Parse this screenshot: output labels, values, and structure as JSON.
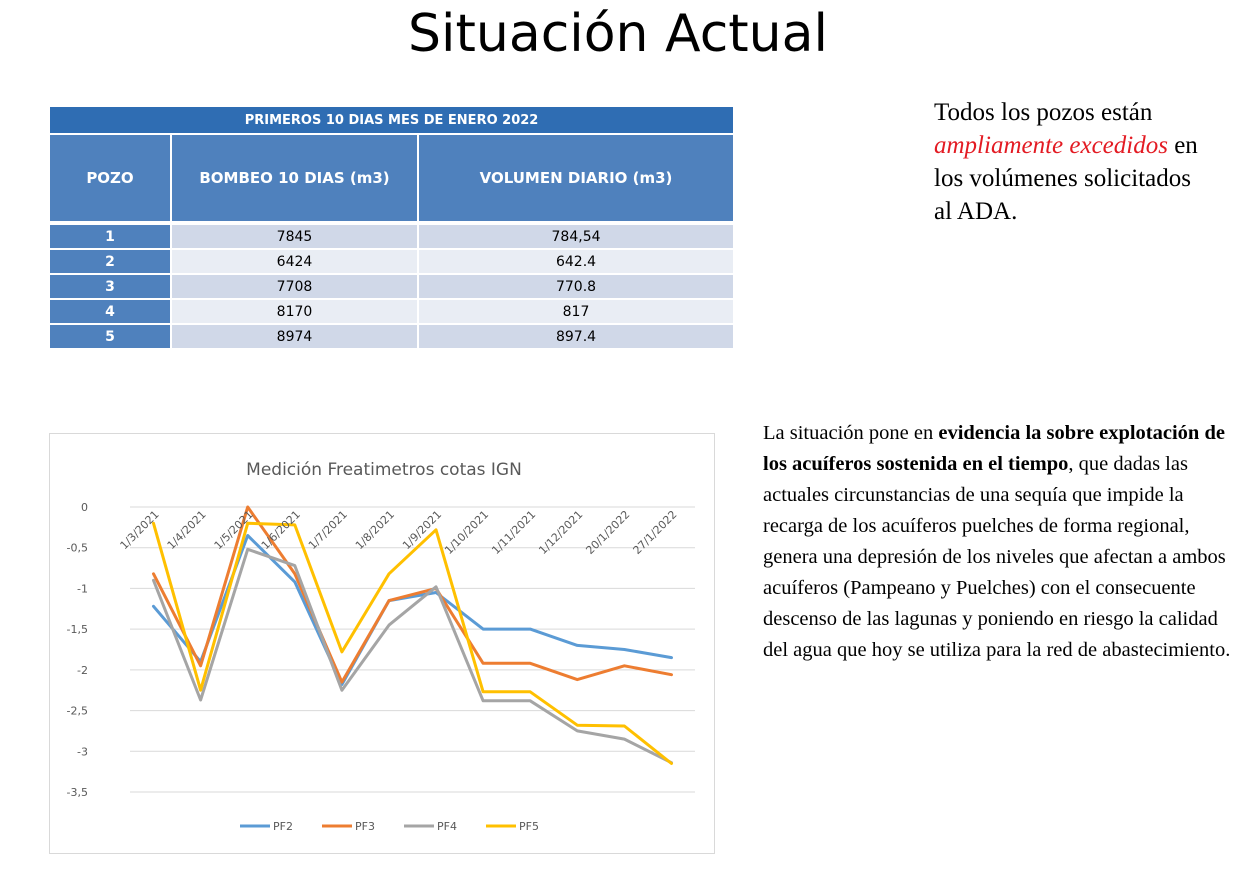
{
  "title": "Situación Actual",
  "table": {
    "caption": "PRIMEROS 10 DIAS MES DE ENERO 2022",
    "headers": [
      "POZO",
      "BOMBEO 10 DIAS (m3)",
      "VOLUMEN DIARIO (m3)"
    ],
    "rows": [
      {
        "pozo": "1",
        "bombeo": "7845",
        "volumen": "784,54"
      },
      {
        "pozo": "2",
        "bombeo": "6424",
        "volumen": "642.4"
      },
      {
        "pozo": "3",
        "bombeo": "7708",
        "volumen": "770.8"
      },
      {
        "pozo": "4",
        "bombeo": "8170",
        "volumen": "817"
      },
      {
        "pozo": "5",
        "bombeo": "8974",
        "volumen": "897.4"
      }
    ]
  },
  "note_top": {
    "part1": "Todos los pozos están ",
    "highlight": "ampliamente excedidos",
    "part2": " en los volúmenes solicitados al ADA."
  },
  "note_bottom": {
    "part1": "La situación pone en ",
    "bold": "evidencia la sobre explotación de los acuíferos sostenida en el tiempo",
    "part2": ", que dadas las actuales circunstancias de una sequía que impide la recarga de los acuíferos puelches de forma regional, genera una depresión de los niveles que afectan a ambos acuíferos (Pampeano y Puelches) con el consecuente descenso de las lagunas y poniendo en riesgo la calidad del agua que hoy se utiliza para la red de abastecimiento."
  },
  "chart_data": {
    "type": "line",
    "title": "Medición Freatimetros cotas IGN",
    "x": [
      "1/3/2021",
      "1/4/2021",
      "1/5/2021",
      "1/6/2021",
      "1/7/2021",
      "1/8/2021",
      "1/9/2021",
      "1/10/2021",
      "1/11/2021",
      "1/12/2021",
      "20/1/2022",
      "27/1/2022"
    ],
    "ylim": [
      -3.5,
      0
    ],
    "yticks": [
      0,
      -0.5,
      -1,
      -1.5,
      -2,
      -2.5,
      -3,
      -3.5
    ],
    "ytick_labels": [
      "0",
      "-0,5",
      "-1",
      "-1,5",
      "-2",
      "-2,5",
      "-3",
      "-3,5"
    ],
    "grid": true,
    "legend": "bottom",
    "series": [
      {
        "name": "PF2",
        "color": "#5b9bd5",
        "values": [
          -1.22,
          -1.9,
          -0.35,
          -0.92,
          -2.18,
          -1.15,
          -1.05,
          -1.5,
          -1.5,
          -1.7,
          -1.75,
          -1.85
        ]
      },
      {
        "name": "PF3",
        "color": "#ed7d31",
        "values": [
          -0.82,
          -1.95,
          0.0,
          -0.82,
          -2.15,
          -1.15,
          -1.0,
          -1.92,
          -1.92,
          -2.12,
          -1.95,
          -2.06
        ]
      },
      {
        "name": "PF4",
        "color": "#a5a5a5",
        "values": [
          -0.9,
          -2.37,
          -0.52,
          -0.72,
          -2.25,
          -1.45,
          -0.98,
          -2.38,
          -2.38,
          -2.75,
          -2.85,
          -3.14
        ]
      },
      {
        "name": "PF5",
        "color": "#ffc000",
        "values": [
          -0.2,
          -2.25,
          -0.2,
          -0.22,
          -1.78,
          -0.82,
          -0.28,
          -2.27,
          -2.27,
          -2.68,
          -2.69,
          -3.15
        ]
      }
    ]
  }
}
